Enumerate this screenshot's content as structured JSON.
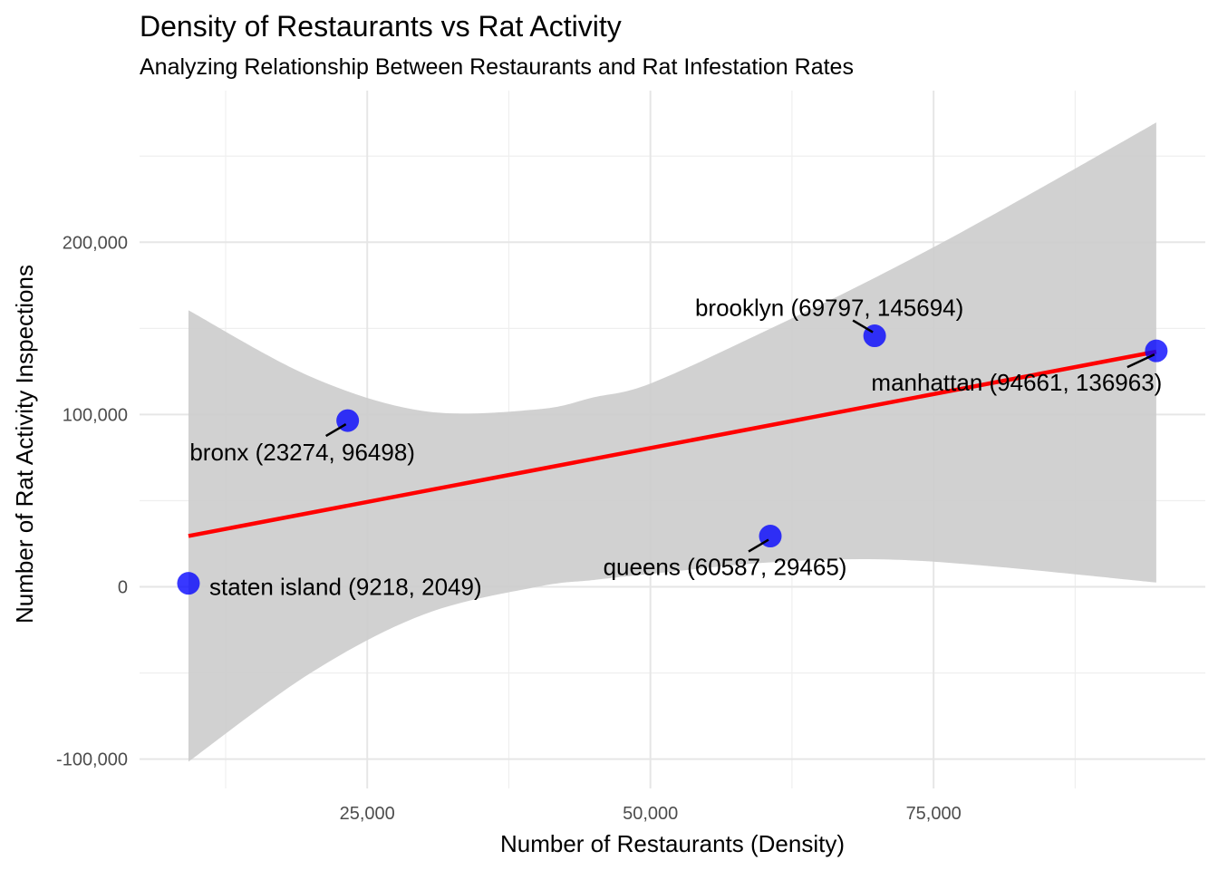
{
  "chart_data": {
    "type": "scatter",
    "title": "Density of Restaurants vs Rat Activity",
    "subtitle": "Analyzing Relationship Between Restaurants and Rat Infestation Rates",
    "xlabel": "Number of Restaurants (Density)",
    "ylabel": "Number of Rat Activity Inspections",
    "xlim": [
      4900,
      98990
    ],
    "ylim": [
      -117000,
      288000
    ],
    "x_ticks": [
      25000,
      50000,
      75000
    ],
    "x_tick_labels": [
      "25,000",
      "50,000",
      "75,000"
    ],
    "x_minor_ticks": [
      12500,
      37500,
      62500,
      87500
    ],
    "y_ticks": [
      -100000,
      0,
      100000,
      200000
    ],
    "y_tick_labels": [
      "-100,000",
      "0",
      "100,000",
      "200,000"
    ],
    "y_minor_ticks": [
      -50000,
      50000,
      150000,
      250000
    ],
    "grid": true,
    "legend": "none",
    "points": [
      {
        "borough": "staten island",
        "x": 9218,
        "y": 2049,
        "label": "staten island (9218, 2049)"
      },
      {
        "borough": "bronx",
        "x": 23274,
        "y": 96498,
        "label": "bronx (23274, 96498)"
      },
      {
        "borough": "queens",
        "x": 60587,
        "y": 29465,
        "label": "queens (60587, 29465)"
      },
      {
        "borough": "brooklyn",
        "x": 69797,
        "y": 145694,
        "label": "brooklyn (69797, 145694)"
      },
      {
        "borough": "manhattan",
        "x": 94661,
        "y": 136963,
        "label": "manhattan (94661, 136963)"
      }
    ],
    "trend_line": {
      "method": "linear",
      "from": {
        "x": 9218,
        "y": 29500
      },
      "to": {
        "x": 94661,
        "y": 136500
      }
    },
    "confidence_band": [
      {
        "x": 9218,
        "low": -101500,
        "high": 160500
      },
      {
        "x": 20000,
        "low": -50000,
        "high": 122000
      },
      {
        "x": 30000,
        "low": -16000,
        "high": 102000
      },
      {
        "x": 40000,
        "low": 0,
        "high": 103000
      },
      {
        "x": 45000,
        "low": 4000,
        "high": 110000
      },
      {
        "x": 50000,
        "low": 7500,
        "high": 118000
      },
      {
        "x": 60000,
        "low": 14000,
        "high": 148000
      },
      {
        "x": 70000,
        "low": 16000,
        "high": 180000
      },
      {
        "x": 80000,
        "low": 12000,
        "high": 215000
      },
      {
        "x": 94661,
        "low": 2500,
        "high": 269500
      }
    ],
    "colors": {
      "point": "#0000ff",
      "trend_line": "#ff0000",
      "band": "#cccccc",
      "grid_major": "#e6e6e6",
      "grid_minor": "#efefef",
      "tick_text": "#4d4d4d"
    }
  }
}
